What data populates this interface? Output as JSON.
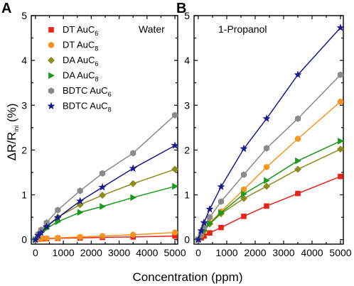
{
  "chart_data": [
    {
      "panel": "A",
      "type": "line",
      "annotation": "Water",
      "xlabel": "Concentration (ppm)",
      "ylabel": "ΔR/R_ini (%)",
      "xlim": [
        -150,
        5100
      ],
      "ylim": [
        -0.1,
        5
      ],
      "xticks": [
        0,
        1000,
        2000,
        3000,
        4000,
        5000
      ],
      "yticks": [
        0,
        1,
        2,
        3,
        4,
        5
      ],
      "legend": "top-left",
      "series": [
        {
          "name": "DT AuC6",
          "base": "DT AuC",
          "sub": "6",
          "color": "#e8241a",
          "marker": "square",
          "x": [
            0,
            50,
            100,
            200,
            400,
            800,
            1600,
            2400,
            3500,
            5000
          ],
          "y": [
            0,
            0.01,
            0.01,
            0.015,
            0.02,
            0.03,
            0.04,
            0.05,
            0.06,
            0.08
          ]
        },
        {
          "name": "DT AuC8",
          "base": "DT AuC",
          "sub": "8",
          "color": "#f7941d",
          "marker": "circle",
          "x": [
            0,
            50,
            100,
            200,
            400,
            800,
            1600,
            2400,
            3500,
            5000
          ],
          "y": [
            0,
            0.01,
            0.015,
            0.02,
            0.03,
            0.04,
            0.06,
            0.08,
            0.11,
            0.16
          ]
        },
        {
          "name": "DA AuC6",
          "base": "DA AuC",
          "sub": "6",
          "color": "#8c8c1c",
          "marker": "diamond",
          "x": [
            0,
            50,
            100,
            200,
            400,
            800,
            1600,
            2400,
            3500,
            5000
          ],
          "y": [
            0,
            0.06,
            0.12,
            0.19,
            0.3,
            0.5,
            0.78,
            0.99,
            1.25,
            1.57
          ]
        },
        {
          "name": "DA AuC8",
          "base": "DA AuC",
          "sub": "8",
          "color": "#1a9a1a",
          "marker": "triangle-right",
          "x": [
            0,
            50,
            100,
            200,
            400,
            800,
            1600,
            2400,
            3500,
            5000
          ],
          "y": [
            0,
            0.05,
            0.1,
            0.16,
            0.25,
            0.4,
            0.61,
            0.74,
            0.94,
            1.19
          ]
        },
        {
          "name": "BDTC AuC6",
          "base": "BDTC AuC",
          "sub": "6",
          "color": "#8a8a8a",
          "marker": "hexagon",
          "x": [
            0,
            50,
            100,
            200,
            400,
            800,
            1600,
            2400,
            3500,
            5000
          ],
          "y": [
            0,
            0.07,
            0.12,
            0.22,
            0.38,
            0.66,
            1.09,
            1.48,
            1.93,
            2.78
          ]
        },
        {
          "name": "BDTC AuC8",
          "base": "BDTC AuC",
          "sub": "8",
          "color": "#1a1a8c",
          "marker": "star",
          "x": [
            0,
            50,
            100,
            200,
            400,
            800,
            1600,
            2400,
            3500,
            5000
          ],
          "y": [
            0,
            0.04,
            0.09,
            0.15,
            0.29,
            0.49,
            0.86,
            1.17,
            1.59,
            2.1
          ]
        }
      ]
    },
    {
      "panel": "B",
      "type": "line",
      "annotation": "1-Propanol",
      "xlabel": "Concentration (ppm)",
      "xlim": [
        -150,
        5100
      ],
      "ylim": [
        -0.1,
        5
      ],
      "xticks": [
        0,
        1000,
        2000,
        3000,
        4000,
        5000
      ],
      "yticks": [
        0,
        1,
        2,
        3,
        4,
        5
      ],
      "series": [
        {
          "name": "DT AuC6",
          "color": "#e8241a",
          "marker": "square",
          "x": [
            0,
            50,
            100,
            200,
            400,
            800,
            1600,
            2400,
            3500,
            5000
          ],
          "y": [
            0,
            0.02,
            0.04,
            0.08,
            0.15,
            0.27,
            0.52,
            0.75,
            1.03,
            1.41
          ]
        },
        {
          "name": "DT AuC8",
          "color": "#f7941d",
          "marker": "circle",
          "x": [
            0,
            50,
            100,
            200,
            400,
            800,
            1600,
            2400,
            3500,
            5000
          ],
          "y": [
            0,
            0.05,
            0.1,
            0.2,
            0.37,
            0.63,
            1.12,
            1.62,
            2.25,
            3.08
          ]
        },
        {
          "name": "DA AuC6",
          "color": "#8c8c1c",
          "marker": "diamond",
          "x": [
            0,
            50,
            100,
            200,
            400,
            800,
            1600,
            2400,
            3500,
            5000
          ],
          "y": [
            0,
            0.05,
            0.1,
            0.2,
            0.35,
            0.58,
            0.92,
            1.19,
            1.57,
            2.02
          ]
        },
        {
          "name": "DA AuC8",
          "color": "#1a9a1a",
          "marker": "triangle-right",
          "x": [
            0,
            50,
            100,
            200,
            400,
            800,
            1600,
            2400,
            3500,
            5000
          ],
          "y": [
            0,
            0.05,
            0.11,
            0.2,
            0.36,
            0.6,
            1.02,
            1.32,
            1.76,
            2.2
          ]
        },
        {
          "name": "BDTC AuC6",
          "color": "#8a8a8a",
          "marker": "hexagon",
          "x": [
            0,
            50,
            100,
            200,
            400,
            800,
            1600,
            2400,
            3500,
            5000
          ],
          "y": [
            0,
            0.06,
            0.13,
            0.28,
            0.5,
            0.85,
            1.45,
            2.04,
            2.7,
            3.68
          ]
        },
        {
          "name": "BDTC AuC8",
          "color": "#1a1a8c",
          "marker": "star",
          "x": [
            0,
            50,
            100,
            200,
            400,
            800,
            1600,
            2400,
            3500,
            5000
          ],
          "y": [
            0,
            0.1,
            0.2,
            0.38,
            0.68,
            1.18,
            2.03,
            2.7,
            3.68,
            4.73
          ]
        }
      ]
    }
  ]
}
